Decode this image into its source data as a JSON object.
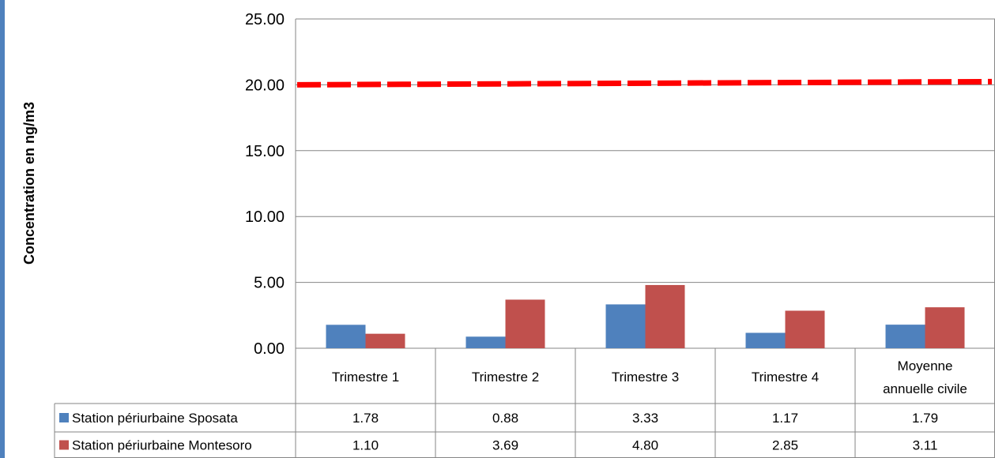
{
  "chart_data": {
    "type": "bar",
    "ylabel": "Concentration en ng/m3",
    "ylim": [
      0,
      25
    ],
    "yticks": [
      "0.00",
      "5.00",
      "10.00",
      "15.00",
      "20.00",
      "25.00"
    ],
    "grid": true,
    "legend": "data-table-left",
    "categories": [
      [
        "Trimestre 1"
      ],
      [
        "Trimestre 2"
      ],
      [
        "Trimestre 3"
      ],
      [
        "Trimestre 4"
      ],
      [
        "Moyenne",
        "annuelle civile"
      ]
    ],
    "series": [
      {
        "name": "Station périurbaine Sposata",
        "color": "#4f81bd",
        "values": [
          1.78,
          0.88,
          3.33,
          1.17,
          1.79
        ],
        "labels": [
          "1.78",
          "0.88",
          "3.33",
          "1.17",
          "1.79"
        ]
      },
      {
        "name": "Station périurbaine Montesoro",
        "color": "#c0504d",
        "values": [
          1.1,
          3.69,
          4.8,
          2.85,
          3.11
        ],
        "labels": [
          "1.10",
          "3.69",
          "4.80",
          "2.85",
          "3.11"
        ]
      }
    ],
    "reference_line": {
      "value": 20,
      "color": "#ff0000",
      "style": "dashed"
    }
  }
}
